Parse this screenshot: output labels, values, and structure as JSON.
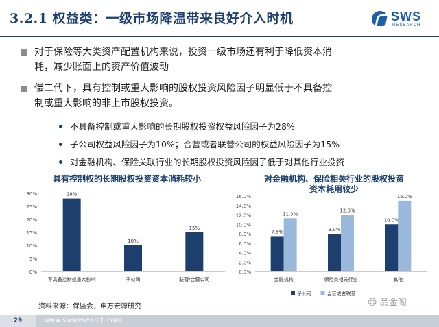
{
  "header": {
    "title": "3.2.1 权益类：一级市场降温带来良好介入时机",
    "logo_text": "SWS",
    "logo_sub": "RESEARCH"
  },
  "bullets": [
    {
      "line1": "对于保险等大类资产配置机构来说，投资一级市场还有利于降低资本消",
      "line2": "耗，减少账面上的资产价值波动"
    },
    {
      "line1": "偿二代下，具有控制或重大影响的股权投资风险因子明显低于不具备控",
      "line2": "制或重大影响的非上市股权投资。"
    }
  ],
  "sub_bullets": [
    "不具备控制或重大影响的长期股权投资权益风险因子为28%",
    "子公司权益风险因子为10%；合营或者联营公司的权益风险因子为15%",
    "对金融机构、保险关联行业的长期股权投资风险因子低于对其他行业投资"
  ],
  "chart_data": [
    {
      "type": "bar",
      "title": "具有控制权的长期股权投资资本消耗较小",
      "categories": [
        "不具备控制或重大影响",
        "子公司",
        "联营/合营公司"
      ],
      "values": [
        28,
        10,
        15
      ],
      "value_labels": [
        "28%",
        "10%",
        "15%"
      ],
      "yticks": [
        "0%",
        "5%",
        "10%",
        "15%",
        "20%",
        "25%",
        "30%"
      ],
      "ylim": [
        0,
        30
      ],
      "color": "#1c3f6e"
    },
    {
      "type": "bar",
      "title_line1": "对金融机构、保险相关行业的股权投资",
      "title_line2": "资本耗用较少",
      "categories": [
        "金融机构",
        "保险类相关行业",
        "其他"
      ],
      "series": [
        {
          "name": "子公司",
          "values": [
            7.5,
            8.0,
            10.0
          ],
          "labels": [
            "7.5%",
            "8.0%",
            "10.0%"
          ],
          "color": "#1c3f6e"
        },
        {
          "name": "合营或者联营",
          "values": [
            11.3,
            12.0,
            15.0
          ],
          "labels": [
            "11.3%",
            "12.0%",
            "15.0%"
          ],
          "color": "#9ab8dc"
        }
      ],
      "yticks": [
        "0.0%",
        "2.0%",
        "4.0%",
        "6.0%",
        "8.0%",
        "10.0%",
        "12.0%",
        "14.0%",
        "16.0%"
      ],
      "ylim": [
        0,
        16
      ],
      "legend_position": "bottom"
    }
  ],
  "source": "资料来源：保监会，申万宏源研究",
  "watermark": "品金阁",
  "footer": {
    "page": "29",
    "url": "www.swsresearch.com"
  }
}
